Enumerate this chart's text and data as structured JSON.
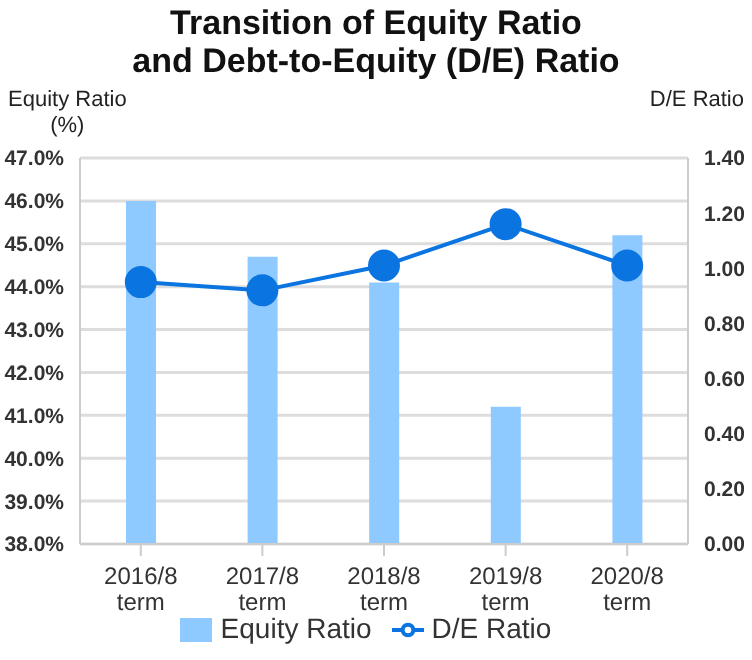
{
  "chart_data": {
    "type": "bar",
    "title": "Transition of Equity Ratio\nand Debt-to-Equity (D/E) Ratio",
    "ylabel": "Equity Ratio\n(%)",
    "y2label": "D/E Ratio",
    "categories": [
      "2016/8\nterm",
      "2017/8\nterm",
      "2018/8\nterm",
      "2019/8\nterm",
      "2020/8\nterm"
    ],
    "series": [
      {
        "name": "Equity Ratio",
        "color": "#8ec9ff",
        "values": [
          46.0,
          44.7,
          44.1,
          41.2,
          45.2
        ]
      },
      {
        "name": "D/E Ratio",
        "type": "line",
        "axis": "y2",
        "color": "#0a74e0",
        "values": [
          0.95,
          0.92,
          1.01,
          1.16,
          1.01
        ]
      }
    ],
    "ylim": [
      38,
      47
    ],
    "yticks": [
      {
        "value": 38,
        "label": "38.0%"
      },
      {
        "value": 39,
        "label": "39.0%"
      },
      {
        "value": 40,
        "label": "40.0%"
      },
      {
        "value": 41,
        "label": "41.0%"
      },
      {
        "value": 42,
        "label": "42.0%"
      },
      {
        "value": 43,
        "label": "43.0%"
      },
      {
        "value": 44,
        "label": "44.0%"
      },
      {
        "value": 45,
        "label": "45.0%"
      },
      {
        "value": 46,
        "label": "46.0%"
      },
      {
        "value": 47,
        "label": "47.0%"
      }
    ],
    "y2lim": [
      0,
      1.4
    ],
    "y2ticks": [
      {
        "value": 0,
        "label": "0.00"
      },
      {
        "value": 0.2,
        "label": "0.20"
      },
      {
        "value": 0.4,
        "label": "0.40"
      },
      {
        "value": 0.6,
        "label": "0.60"
      },
      {
        "value": 0.8,
        "label": "0.80"
      },
      {
        "value": 1.0,
        "label": "1.00"
      },
      {
        "value": 1.2,
        "label": "1.20"
      },
      {
        "value": 1.4,
        "label": "1.40"
      }
    ],
    "grid": "y",
    "legend": "bottom",
    "marker": "circle",
    "line_style": "solid"
  }
}
